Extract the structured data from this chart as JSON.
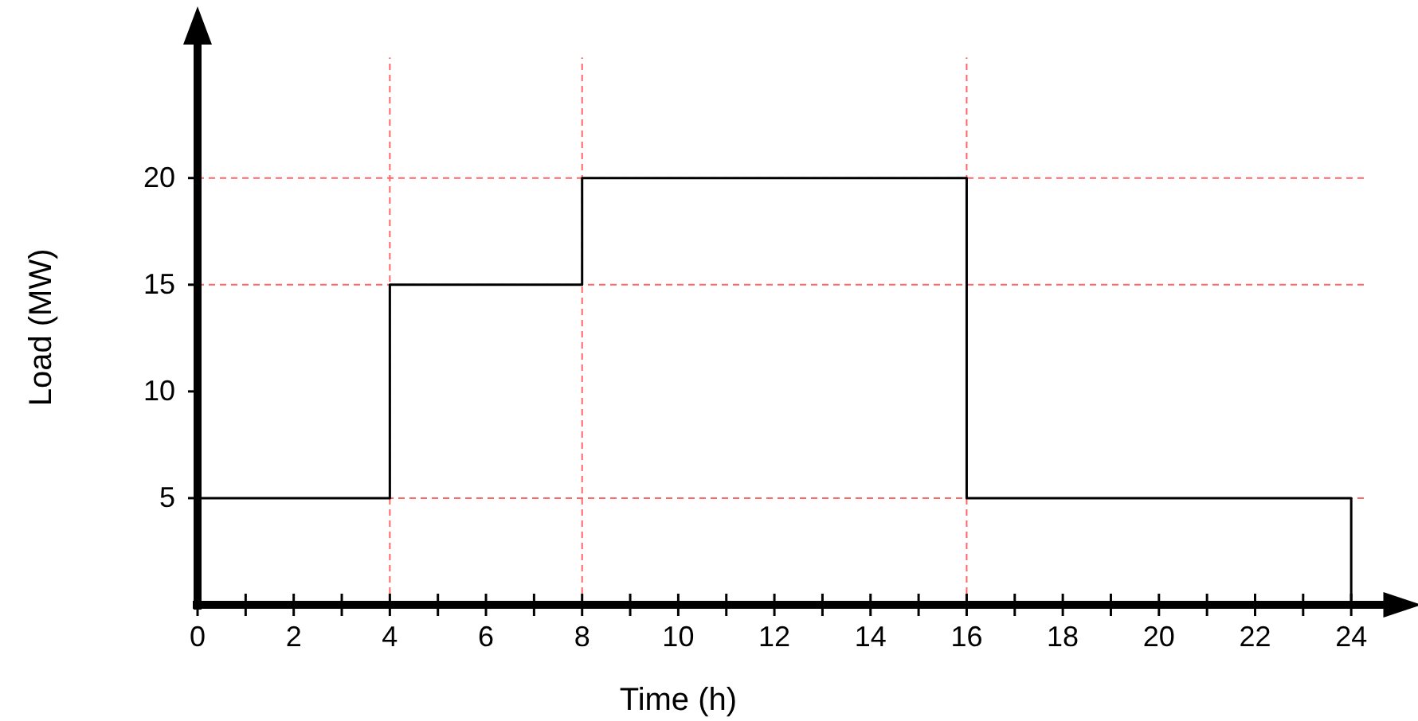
{
  "chart_data": {
    "type": "step",
    "xlabel": "Time (h)",
    "ylabel": "Load (MW)",
    "x": [
      0,
      4,
      8,
      16,
      24
    ],
    "series": [
      {
        "color": "#000000",
        "values": [
          5,
          15,
          20,
          5,
          0
        ]
      }
    ],
    "xlim": [
      0,
      25
    ],
    "ylim": [
      0,
      27
    ],
    "xticks": [
      0,
      {
        "value": 1,
        "label": null
      },
      2,
      {
        "value": 3,
        "label": null
      },
      4,
      {
        "value": 5,
        "label": null
      },
      6,
      {
        "value": 7,
        "label": null
      },
      8,
      {
        "value": 9,
        "label": null
      },
      10,
      {
        "value": 11,
        "label": null
      },
      12,
      {
        "value": 13,
        "label": null
      },
      14,
      {
        "value": 15,
        "label": null
      },
      16,
      {
        "value": 17,
        "label": null
      },
      18,
      {
        "value": 19,
        "label": null
      },
      20,
      {
        "value": 21,
        "label": null
      },
      22,
      {
        "value": 23,
        "label": null
      },
      24
    ],
    "yticks": [
      5,
      10,
      15,
      20
    ],
    "ref_lines": [
      {
        "axis": "y",
        "value": 5,
        "color": "#ff6666",
        "line_style": "dashed"
      },
      {
        "axis": "y",
        "value": 15,
        "color": "#ff6666",
        "line_style": "dashed"
      },
      {
        "axis": "y",
        "value": 20,
        "color": "#ff6666",
        "line_style": "dashed"
      },
      {
        "axis": "x",
        "value": 4,
        "color": "#ff6666",
        "line_style": "dashed"
      },
      {
        "axis": "x",
        "value": 8,
        "color": "#ff6666",
        "line_style": "dashed"
      },
      {
        "axis": "x",
        "value": 16,
        "color": "#ff6666",
        "line_style": "dashed"
      }
    ],
    "line_style": "solid"
  }
}
